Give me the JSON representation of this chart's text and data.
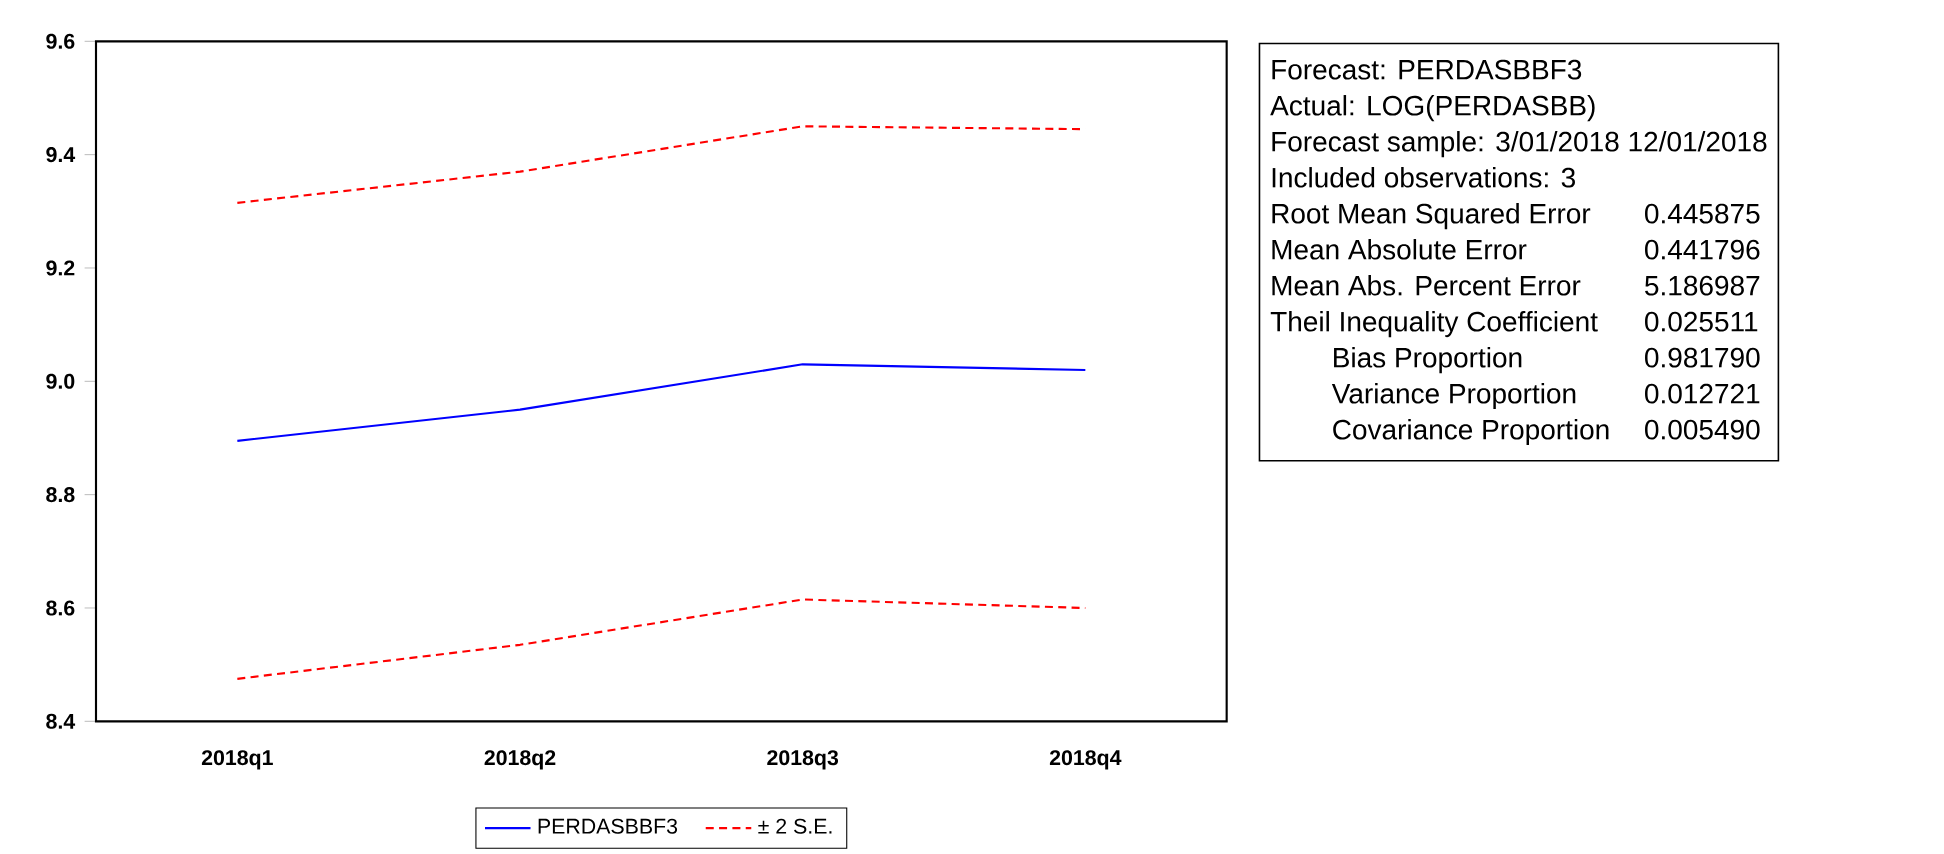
{
  "chart_data": {
    "type": "line",
    "categories": [
      "2018q1",
      "2018q2",
      "2018q3",
      "2018q4"
    ],
    "series": [
      {
        "name": "PERDASBBF3",
        "color": "#0000ff",
        "line_style": "solid",
        "values": [
          8.895,
          8.95,
          9.03,
          9.02
        ]
      },
      {
        "name": "± 2 S.E.",
        "color": "#ff0000",
        "line_style": "dashed",
        "values": [
          9.315,
          9.37,
          9.45,
          9.445
        ]
      },
      {
        "color": "#ff0000",
        "line_style": "dashed",
        "values": [
          8.475,
          8.535,
          8.615,
          8.6
        ]
      }
    ],
    "ylim": [
      8.4,
      9.6
    ],
    "yticks": [
      8.4,
      8.6,
      8.8,
      {
        "value": 9,
        "label": "9.0"
      },
      9.2,
      9.4,
      9.6
    ],
    "legend": "bottom",
    "annotations": [
      "Forecast: PERDASBBF3",
      "Actual: LOG(PERDASBB)",
      "Forecast sample: 3/01/2018 12/01/2018",
      "Included observations: 3",
      "Root Mean Squared Error",
      "0.445875",
      "Mean Absolute Error",
      "0.441796",
      "Mean Abs. Percent Error",
      "5.186987",
      "Theil Inequality Coefficient",
      "0.025511",
      "Bias Proportion",
      "0.981790",
      "Variance Proportion",
      "0.012721",
      "Covariance Proportion",
      "0.005490"
    ]
  }
}
